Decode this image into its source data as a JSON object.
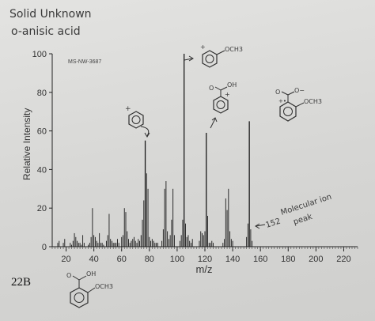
{
  "notes": {
    "title_line1": "Solid Unknown",
    "title_line2": "o-anisic acid",
    "molecular_ion_line1": "Molecular ion",
    "molecular_ion_line2": "peak",
    "mz_152": "152",
    "caption": "22B"
  },
  "structures": {
    "sub_och3": "OCH3",
    "sub_oh": "OH",
    "sub_o": "O",
    "sub_ominus": "O−",
    "plus": "+",
    "radical_plus": "+•"
  },
  "chart_data": {
    "type": "bar",
    "title": "",
    "source_code": "MS-NW-3687",
    "xlabel": "m/z",
    "ylabel": "Relative Intensity",
    "xlim": [
      10,
      230
    ],
    "ylim": [
      0,
      100
    ],
    "xticks": [
      20,
      40,
      60,
      80,
      100,
      120,
      140,
      160,
      180,
      200,
      220
    ],
    "yticks": [
      0,
      20,
      40,
      60,
      80,
      100
    ],
    "series": [
      {
        "x": [
          14,
          15,
          18,
          19,
          23,
          24,
          25,
          26,
          27,
          28,
          29,
          30,
          31,
          32,
          33,
          36,
          37,
          38,
          39,
          40,
          41,
          42,
          43,
          44,
          45,
          46,
          47,
          49,
          50,
          51,
          52,
          53,
          54,
          55,
          56,
          57,
          58,
          60,
          61,
          62,
          63,
          64,
          65,
          66,
          67,
          68,
          69,
          70,
          71,
          72,
          73,
          74,
          75,
          76,
          77,
          78,
          79,
          80,
          81,
          82,
          83,
          84,
          85,
          86,
          89,
          90,
          91,
          92,
          93,
          94,
          95,
          96,
          97,
          98,
          102,
          103,
          104,
          105,
          106,
          107,
          108,
          109,
          110,
          111,
          116,
          117,
          118,
          119,
          120,
          121,
          122,
          123,
          124,
          125,
          126,
          133,
          134,
          135,
          136,
          137,
          138,
          139,
          140,
          150,
          151,
          152,
          153,
          154
        ],
        "values": [
          2,
          3,
          2,
          4,
          2,
          1,
          3,
          7,
          5,
          3,
          2,
          2,
          1,
          6,
          2,
          1,
          2,
          5,
          20,
          6,
          5,
          3,
          2,
          7,
          2,
          2,
          1,
          3,
          6,
          17,
          4,
          3,
          2,
          2,
          2,
          4,
          2,
          5,
          6,
          20,
          18,
          8,
          4,
          2,
          3,
          4,
          5,
          3,
          2,
          4,
          3,
          6,
          14,
          24,
          55,
          38,
          30,
          5,
          3,
          4,
          3,
          2,
          2,
          2,
          3,
          9,
          30,
          34,
          8,
          4,
          6,
          14,
          30,
          6,
          3,
          6,
          14,
          100,
          12,
          5,
          6,
          3,
          2,
          4,
          3,
          8,
          7,
          6,
          8,
          59,
          16,
          2,
          2,
          3,
          2,
          2,
          4,
          25,
          19,
          30,
          8,
          4,
          3,
          5,
          12,
          65,
          9,
          3
        ]
      }
    ],
    "annotations": [
      "Molecular ion peak",
      "152"
    ],
    "grid": false
  }
}
